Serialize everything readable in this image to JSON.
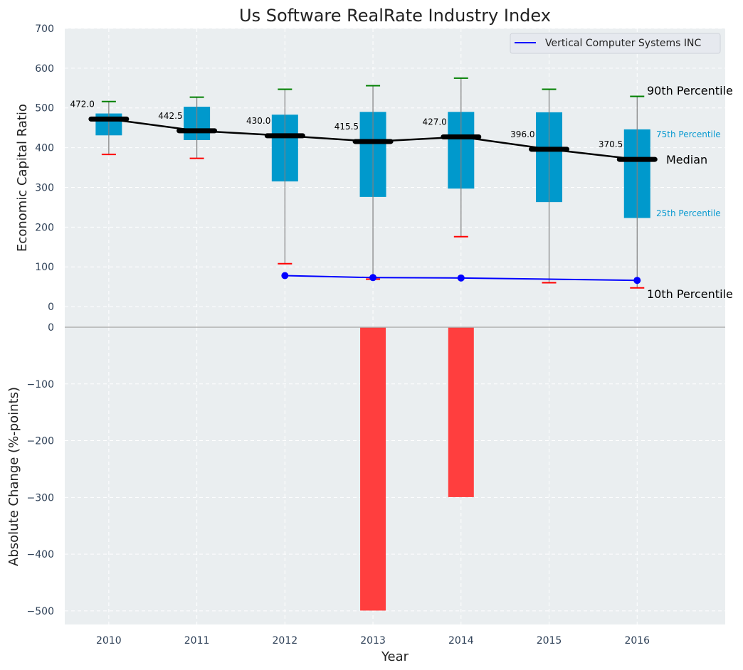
{
  "chart_data": [
    {
      "type": "box",
      "title": "Us Software RealRate Industry Index",
      "xlabel": "",
      "ylabel": "Economic Capital Ratio",
      "ylim": [
        -50,
        700
      ],
      "xlim": [
        2009.5,
        2017.0
      ],
      "yticks": [
        0,
        100,
        200,
        300,
        400,
        500,
        600,
        700
      ],
      "grid": true,
      "categories": [
        2010,
        2011,
        2012,
        2013,
        2014,
        2015,
        2016
      ],
      "percentiles": {
        "p10": [
          383,
          373,
          108,
          69,
          176,
          60,
          47
        ],
        "p25": [
          431,
          419,
          315,
          276,
          297,
          263,
          223
        ],
        "median": [
          472.0,
          442.5,
          430.0,
          415.5,
          427.0,
          396.0,
          370.5
        ],
        "p75": [
          486,
          503,
          483,
          490,
          490,
          489,
          446
        ],
        "p90": [
          516,
          527,
          547,
          556,
          575,
          547,
          529
        ]
      },
      "median_labels": [
        "472.0",
        "442.5",
        "430.0",
        "415.5",
        "427.0",
        "396.0",
        "370.5"
      ],
      "series": [
        {
          "name": "Vertical Computer Systems INC",
          "x": [
            2012,
            2013,
            2014,
            2016
          ],
          "values": [
            78,
            73,
            72,
            66
          ],
          "color": "#0000ff"
        }
      ],
      "legend": {
        "entries": [
          "Vertical Computer Systems INC"
        ],
        "position": "top-right"
      },
      "annotations": {
        "p90": "90th Percentile",
        "p75": "75th Percentile",
        "median": "Median",
        "p25": "25th Percentile",
        "p10": "10th Percentile"
      },
      "colors": {
        "box": "#0099cc",
        "median": "#000000",
        "p90_cap": "#008000",
        "p10_cap": "#ff0000",
        "whisker": "#808080",
        "background": "#eaeef0"
      }
    },
    {
      "type": "bar",
      "xlabel": "Year",
      "ylabel": "Absolute Change (%-points)",
      "ylim": [
        -524,
        0
      ],
      "yticks": [
        0,
        -100,
        -200,
        -300,
        -400,
        -500
      ],
      "ytick_labels": [
        "0",
        "−100",
        "−200",
        "−300",
        "−400",
        "−500"
      ],
      "grid": true,
      "categories": [
        2010,
        2011,
        2012,
        2013,
        2014,
        2015,
        2016
      ],
      "xtick_labels": [
        "2010",
        "2011",
        "2012",
        "2013",
        "2014",
        "2015",
        "2016"
      ],
      "values": [
        0,
        0,
        0,
        -499.5,
        -299.5,
        0,
        0
      ],
      "color": "#ff3e3e"
    }
  ]
}
